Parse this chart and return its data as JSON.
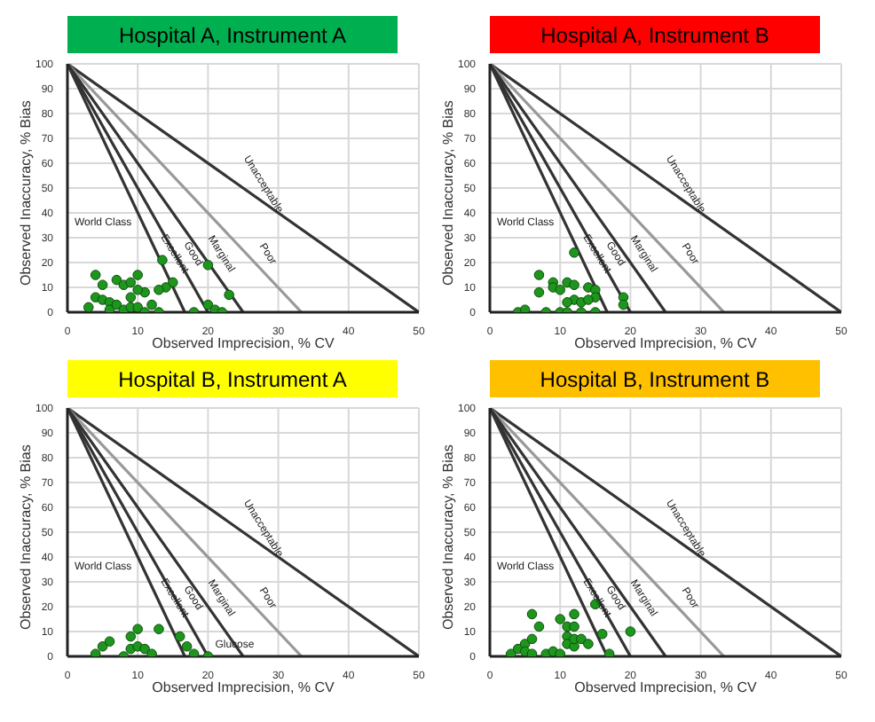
{
  "chart_data": [
    {
      "type": "scatter",
      "title": "Hospital A, Instrument A",
      "xlabel": "Observed Imprecision, % CV",
      "ylabel": "Observed Inaccuracy, % Bias",
      "xlim": [
        0,
        50
      ],
      "ylim": [
        0,
        100
      ],
      "xticks": [
        0,
        10,
        20,
        30,
        40,
        50
      ],
      "yticks": [
        0,
        10,
        20,
        30,
        40,
        50,
        60,
        70,
        80,
        90,
        100
      ],
      "grid": true,
      "series": [
        {
          "type": "line",
          "marker": "none",
          "color": "#333333",
          "x": [
            0,
            50
          ],
          "values": [
            100,
            0
          ]
        },
        {
          "type": "line",
          "marker": "none",
          "color": "#999999",
          "x": [
            0,
            33.3
          ],
          "values": [
            100,
            0
          ]
        },
        {
          "type": "line",
          "marker": "none",
          "color": "#333333",
          "x": [
            0,
            25
          ],
          "values": [
            100,
            0
          ]
        },
        {
          "type": "line",
          "marker": "none",
          "color": "#333333",
          "x": [
            0,
            20
          ],
          "values": [
            100,
            0
          ]
        },
        {
          "type": "line",
          "marker": "none",
          "color": "#333333",
          "x": [
            0,
            16.7
          ],
          "values": [
            100,
            0
          ]
        },
        {
          "marker": "circle",
          "color": "#1e961e",
          "x": [
            4,
            5,
            7,
            8,
            9,
            10,
            11,
            9,
            10,
            13.5,
            15,
            14,
            13,
            4,
            5,
            6,
            6,
            7,
            8,
            9,
            10,
            12,
            3,
            11,
            13,
            18,
            20,
            21,
            22,
            20,
            23
          ],
          "values": [
            15,
            11,
            13,
            11,
            12,
            15,
            8,
            6,
            9,
            21,
            12,
            10,
            9,
            6,
            5,
            4,
            1,
            3,
            1,
            2,
            2,
            3,
            2,
            0,
            0,
            0,
            3,
            1,
            0,
            19,
            7
          ]
        }
      ],
      "annotations": [
        "World Class",
        "Excellent",
        "Good",
        "Marginal",
        "Poor",
        "Unacceptable"
      ]
    },
    {
      "type": "scatter",
      "title": "Hospital A, Instrument B",
      "xlabel": "Observed Imprecision, % CV",
      "ylabel": "Observed Inaccuracy, % Bias",
      "xlim": [
        0,
        50
      ],
      "ylim": [
        0,
        100
      ],
      "xticks": [
        0,
        10,
        20,
        30,
        40,
        50
      ],
      "yticks": [
        0,
        10,
        20,
        30,
        40,
        50,
        60,
        70,
        80,
        90,
        100
      ],
      "grid": true,
      "series": [
        {
          "type": "line",
          "marker": "none",
          "color": "#333333",
          "x": [
            0,
            50
          ],
          "values": [
            100,
            0
          ]
        },
        {
          "type": "line",
          "marker": "none",
          "color": "#999999",
          "x": [
            0,
            33.3
          ],
          "values": [
            100,
            0
          ]
        },
        {
          "type": "line",
          "marker": "none",
          "color": "#333333",
          "x": [
            0,
            25
          ],
          "values": [
            100,
            0
          ]
        },
        {
          "type": "line",
          "marker": "none",
          "color": "#333333",
          "x": [
            0,
            20
          ],
          "values": [
            100,
            0
          ]
        },
        {
          "type": "line",
          "marker": "none",
          "color": "#333333",
          "x": [
            0,
            16.7
          ],
          "values": [
            100,
            0
          ]
        },
        {
          "marker": "circle",
          "color": "#1e961e",
          "x": [
            7,
            7,
            9,
            9,
            10,
            11,
            12,
            12,
            12,
            13,
            11,
            14,
            15,
            15,
            14,
            4,
            5,
            8,
            10,
            11,
            13,
            15,
            19,
            19
          ],
          "values": [
            15,
            8,
            12,
            10,
            9,
            12,
            11,
            24,
            5,
            4,
            4,
            10,
            9,
            6,
            5,
            0,
            1,
            0,
            0,
            0,
            0,
            0,
            6,
            3
          ]
        }
      ],
      "annotations": [
        "World Class",
        "Excellent",
        "Good",
        "Marginal",
        "Poor",
        "Unacceptable"
      ]
    },
    {
      "type": "scatter",
      "title": "Hospital B, Instrument A",
      "xlabel": "Observed Imprecision, % CV",
      "ylabel": "Observed Inaccuracy, % Bias",
      "xlim": [
        0,
        50
      ],
      "ylim": [
        0,
        100
      ],
      "xticks": [
        0,
        10,
        20,
        30,
        40,
        50
      ],
      "yticks": [
        0,
        10,
        20,
        30,
        40,
        50,
        60,
        70,
        80,
        90,
        100
      ],
      "grid": true,
      "series": [
        {
          "type": "line",
          "marker": "none",
          "color": "#333333",
          "x": [
            0,
            50
          ],
          "values": [
            100,
            0
          ]
        },
        {
          "type": "line",
          "marker": "none",
          "color": "#999999",
          "x": [
            0,
            33.3
          ],
          "values": [
            100,
            0
          ]
        },
        {
          "type": "line",
          "marker": "none",
          "color": "#333333",
          "x": [
            0,
            25
          ],
          "values": [
            100,
            0
          ]
        },
        {
          "type": "line",
          "marker": "none",
          "color": "#333333",
          "x": [
            0,
            20
          ],
          "values": [
            100,
            0
          ]
        },
        {
          "type": "line",
          "marker": "none",
          "color": "#333333",
          "x": [
            0,
            16.7
          ],
          "values": [
            100,
            0
          ]
        },
        {
          "marker": "circle",
          "color": "#1e961e",
          "x": [
            5,
            6,
            4,
            8,
            9,
            9,
            10,
            10,
            11,
            12,
            13,
            16,
            17,
            18,
            20
          ],
          "values": [
            4,
            6,
            1,
            0,
            3,
            8,
            11,
            4,
            3,
            1,
            11,
            8,
            4,
            1,
            0
          ]
        }
      ],
      "annotations": [
        "World Class",
        "Excellent",
        "Good",
        "Marginal",
        "Poor",
        "Unacceptable",
        {
          "text": "Glucose",
          "x": 20,
          "y": 0
        }
      ]
    },
    {
      "type": "scatter",
      "title": "Hospital B, Instrument B",
      "xlabel": "Observed Imprecision, % CV",
      "ylabel": "Observed Inaccuracy, % Bias",
      "xlim": [
        0,
        50
      ],
      "ylim": [
        0,
        100
      ],
      "xticks": [
        0,
        10,
        20,
        30,
        40,
        50
      ],
      "yticks": [
        0,
        10,
        20,
        30,
        40,
        50,
        60,
        70,
        80,
        90,
        100
      ],
      "grid": true,
      "series": [
        {
          "type": "line",
          "marker": "none",
          "color": "#333333",
          "x": [
            0,
            50
          ],
          "values": [
            100,
            0
          ]
        },
        {
          "type": "line",
          "marker": "none",
          "color": "#999999",
          "x": [
            0,
            33.3
          ],
          "values": [
            100,
            0
          ]
        },
        {
          "type": "line",
          "marker": "none",
          "color": "#333333",
          "x": [
            0,
            25
          ],
          "values": [
            100,
            0
          ]
        },
        {
          "type": "line",
          "marker": "none",
          "color": "#333333",
          "x": [
            0,
            20
          ],
          "values": [
            100,
            0
          ]
        },
        {
          "type": "line",
          "marker": "none",
          "color": "#333333",
          "x": [
            0,
            16.7
          ],
          "values": [
            100,
            0
          ]
        },
        {
          "marker": "circle",
          "color": "#1e961e",
          "x": [
            6,
            7,
            3,
            4,
            5,
            6,
            5,
            6,
            8,
            9,
            10,
            10,
            11,
            11,
            12,
            12,
            11,
            12,
            12,
            13,
            14,
            15,
            16,
            17,
            20
          ],
          "values": [
            17,
            12,
            1,
            3,
            5,
            7,
            2,
            1,
            1,
            2,
            1,
            15,
            12,
            8,
            17,
            12,
            5,
            4,
            7,
            7,
            5,
            21,
            9,
            1,
            10
          ]
        }
      ],
      "annotations": [
        "World Class",
        "Excellent",
        "Good",
        "Marginal",
        "Poor",
        "Unacceptable"
      ]
    }
  ]
}
